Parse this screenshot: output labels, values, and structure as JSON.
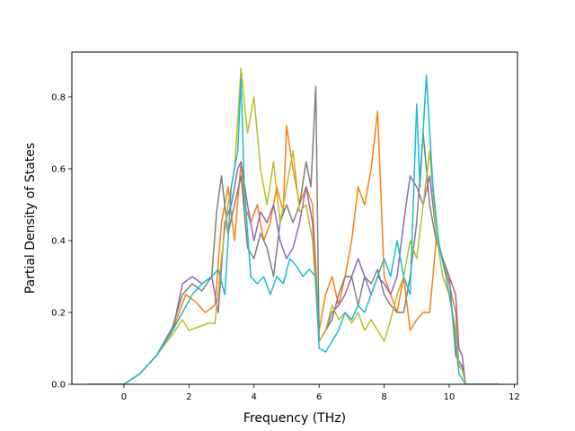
{
  "chart_data": {
    "type": "line",
    "title": "",
    "xlabel": "Frequency (THz)",
    "ylabel": "Partial Density of States",
    "xlim": [
      -1.6,
      12.1
    ],
    "ylim": [
      0.0,
      0.925
    ],
    "xticks": [
      0,
      2,
      4,
      6,
      8,
      10,
      12
    ],
    "yticks": [
      0.0,
      0.2,
      0.4,
      0.6,
      0.8
    ],
    "xtick_labels": [
      "0",
      "2",
      "4",
      "6",
      "8",
      "10",
      "12"
    ],
    "ytick_labels": [
      "0.0",
      "0.2",
      "0.4",
      "0.6",
      "0.8"
    ],
    "grid": false,
    "legend": false,
    "series": [
      {
        "color": "#ff7f0e",
        "x": [
          -1.1,
          0.0,
          0.5,
          1.0,
          1.5,
          1.9,
          2.2,
          2.5,
          2.8,
          3.0,
          3.2,
          3.4,
          3.6,
          3.7,
          3.9,
          4.1,
          4.3,
          4.5,
          4.7,
          4.9,
          5.0,
          5.2,
          5.4,
          5.6,
          5.8,
          6.0,
          6.2,
          6.4,
          6.6,
          6.8,
          7.0,
          7.2,
          7.4,
          7.6,
          7.8,
          8.0,
          8.2,
          8.4,
          8.6,
          8.8,
          9.0,
          9.2,
          9.4,
          9.6,
          9.8,
          10.0,
          10.2,
          10.3,
          10.4,
          10.5,
          11.5
        ],
        "y": [
          0.0,
          0.0,
          0.03,
          0.08,
          0.15,
          0.25,
          0.23,
          0.2,
          0.22,
          0.45,
          0.55,
          0.4,
          0.62,
          0.5,
          0.45,
          0.5,
          0.4,
          0.45,
          0.55,
          0.48,
          0.72,
          0.6,
          0.5,
          0.55,
          0.5,
          0.15,
          0.25,
          0.3,
          0.22,
          0.3,
          0.4,
          0.55,
          0.5,
          0.6,
          0.76,
          0.3,
          0.25,
          0.2,
          0.3,
          0.15,
          0.18,
          0.2,
          0.2,
          0.4,
          0.35,
          0.28,
          0.2,
          0.05,
          0.05,
          0.0,
          0.0
        ]
      },
      {
        "color": "#9467bd",
        "x": [
          -1.1,
          0.0,
          0.5,
          1.0,
          1.5,
          1.8,
          2.1,
          2.4,
          2.7,
          2.9,
          3.1,
          3.3,
          3.5,
          3.6,
          3.8,
          4.0,
          4.2,
          4.4,
          4.6,
          4.8,
          5.0,
          5.2,
          5.4,
          5.6,
          5.8,
          6.0,
          6.2,
          6.4,
          6.6,
          6.8,
          7.0,
          7.2,
          7.4,
          7.6,
          7.8,
          8.0,
          8.2,
          8.4,
          8.6,
          8.8,
          9.0,
          9.2,
          9.4,
          9.6,
          9.8,
          10.0,
          10.2,
          10.3,
          10.4,
          10.5,
          11.5
        ],
        "y": [
          0.0,
          0.0,
          0.03,
          0.08,
          0.15,
          0.28,
          0.3,
          0.28,
          0.3,
          0.2,
          0.45,
          0.5,
          0.6,
          0.62,
          0.5,
          0.4,
          0.48,
          0.45,
          0.5,
          0.4,
          0.35,
          0.38,
          0.45,
          0.55,
          0.45,
          0.12,
          0.15,
          0.2,
          0.22,
          0.25,
          0.3,
          0.35,
          0.3,
          0.25,
          0.3,
          0.28,
          0.25,
          0.3,
          0.45,
          0.58,
          0.55,
          0.5,
          0.58,
          0.42,
          0.35,
          0.3,
          0.25,
          0.1,
          0.08,
          0.0,
          0.0
        ]
      },
      {
        "color": "#7f7f7f",
        "x": [
          -1.1,
          0.0,
          0.5,
          1.0,
          1.5,
          1.8,
          2.1,
          2.4,
          2.7,
          2.85,
          3.0,
          3.2,
          3.4,
          3.6,
          3.8,
          4.0,
          4.2,
          4.4,
          4.6,
          4.8,
          5.0,
          5.2,
          5.4,
          5.6,
          5.75,
          5.9,
          6.0,
          6.2,
          6.4,
          6.6,
          6.8,
          7.0,
          7.2,
          7.4,
          7.6,
          7.8,
          8.0,
          8.2,
          8.4,
          8.6,
          8.8,
          9.0,
          9.2,
          9.4,
          9.6,
          9.8,
          10.0,
          10.2,
          10.4,
          10.5,
          11.5
        ],
        "y": [
          0.0,
          0.0,
          0.03,
          0.08,
          0.16,
          0.25,
          0.28,
          0.26,
          0.3,
          0.48,
          0.58,
          0.42,
          0.5,
          0.58,
          0.38,
          0.35,
          0.42,
          0.38,
          0.3,
          0.45,
          0.5,
          0.45,
          0.5,
          0.62,
          0.55,
          0.83,
          0.12,
          0.15,
          0.18,
          0.25,
          0.3,
          0.3,
          0.22,
          0.3,
          0.28,
          0.32,
          0.25,
          0.22,
          0.2,
          0.2,
          0.3,
          0.45,
          0.7,
          0.5,
          0.4,
          0.35,
          0.3,
          0.08,
          0.05,
          0.0,
          0.0
        ]
      },
      {
        "color": "#bcbd22",
        "x": [
          -1.1,
          0.0,
          0.5,
          1.0,
          1.5,
          1.8,
          2.0,
          2.3,
          2.6,
          2.8,
          3.0,
          3.2,
          3.4,
          3.6,
          3.8,
          4.0,
          4.2,
          4.4,
          4.6,
          4.8,
          5.0,
          5.2,
          5.4,
          5.6,
          5.8,
          6.0,
          6.2,
          6.4,
          6.6,
          6.8,
          7.0,
          7.2,
          7.4,
          7.6,
          7.8,
          8.0,
          8.2,
          8.4,
          8.6,
          8.8,
          9.0,
          9.2,
          9.4,
          9.6,
          9.8,
          10.0,
          10.2,
          10.3,
          10.4,
          10.5,
          11.5
        ],
        "y": [
          0.0,
          0.0,
          0.03,
          0.08,
          0.14,
          0.18,
          0.15,
          0.16,
          0.17,
          0.17,
          0.35,
          0.5,
          0.6,
          0.88,
          0.7,
          0.8,
          0.6,
          0.5,
          0.62,
          0.45,
          0.55,
          0.65,
          0.48,
          0.5,
          0.4,
          0.12,
          0.15,
          0.22,
          0.18,
          0.2,
          0.17,
          0.2,
          0.15,
          0.18,
          0.15,
          0.12,
          0.18,
          0.25,
          0.3,
          0.4,
          0.35,
          0.5,
          0.65,
          0.42,
          0.3,
          0.25,
          0.15,
          0.05,
          0.04,
          0.0,
          0.0
        ]
      },
      {
        "color": "#17becf",
        "x": [
          -1.1,
          0.0,
          0.5,
          1.0,
          1.5,
          1.8,
          2.1,
          2.4,
          2.7,
          2.9,
          3.1,
          3.3,
          3.5,
          3.6,
          3.7,
          3.9,
          4.1,
          4.3,
          4.5,
          4.7,
          4.9,
          5.1,
          5.3,
          5.5,
          5.7,
          5.9,
          6.0,
          6.2,
          6.4,
          6.6,
          6.8,
          7.0,
          7.2,
          7.4,
          7.6,
          7.8,
          8.0,
          8.2,
          8.4,
          8.6,
          8.8,
          9.0,
          9.1,
          9.3,
          9.5,
          9.7,
          9.9,
          10.1,
          10.3,
          10.5,
          11.5
        ],
        "y": [
          0.0,
          0.0,
          0.03,
          0.08,
          0.15,
          0.2,
          0.25,
          0.28,
          0.3,
          0.32,
          0.25,
          0.55,
          0.65,
          0.85,
          0.55,
          0.3,
          0.28,
          0.3,
          0.25,
          0.3,
          0.28,
          0.35,
          0.33,
          0.3,
          0.32,
          0.3,
          0.1,
          0.09,
          0.12,
          0.15,
          0.2,
          0.18,
          0.22,
          0.2,
          0.25,
          0.3,
          0.35,
          0.3,
          0.4,
          0.3,
          0.25,
          0.78,
          0.55,
          0.86,
          0.55,
          0.38,
          0.3,
          0.2,
          0.03,
          0.0,
          0.0
        ]
      }
    ]
  }
}
